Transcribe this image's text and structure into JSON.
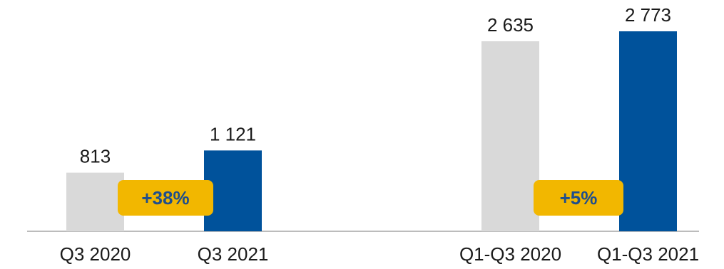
{
  "chart_data": {
    "type": "bar",
    "categories": [
      "Q3 2020",
      "Q3 2021",
      "Q1-Q3 2020",
      "Q1-Q3 2021"
    ],
    "values": [
      813,
      1121,
      2635,
      2773
    ],
    "value_labels": [
      "813",
      "1 121",
      "2 635",
      "2 773"
    ],
    "ylim": [
      0,
      3000
    ],
    "grid": false,
    "bar_colors": [
      "#d9d9d9",
      "#00529b",
      "#d9d9d9",
      "#00529b"
    ],
    "axis_color": "#a6a6a6",
    "badges": [
      {
        "text": "+38%",
        "between": [
          0,
          1
        ],
        "color": "#f2b700",
        "text_color": "#1f4e8c"
      },
      {
        "text": "+5%",
        "between": [
          2,
          3
        ],
        "color": "#f2b700",
        "text_color": "#1f4e8c"
      }
    ]
  }
}
